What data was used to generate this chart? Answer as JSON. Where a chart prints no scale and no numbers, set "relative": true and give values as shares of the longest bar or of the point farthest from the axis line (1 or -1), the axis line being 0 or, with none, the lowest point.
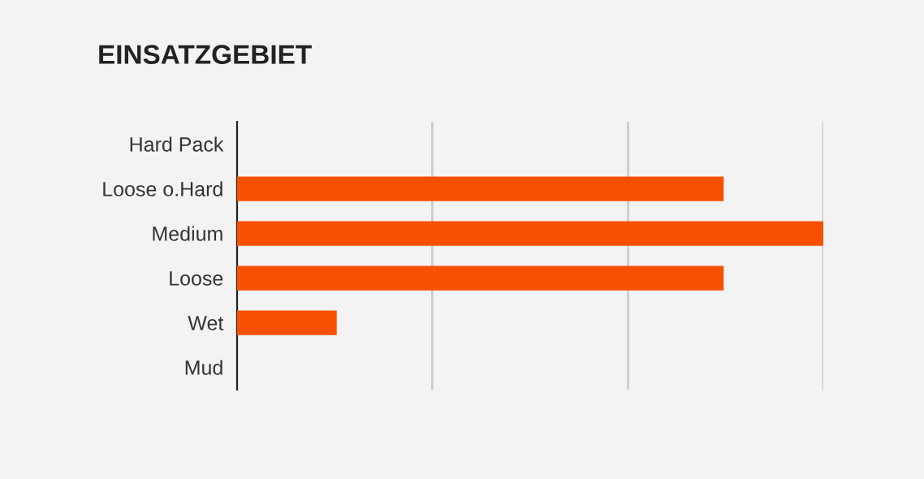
{
  "chart_data": {
    "type": "bar",
    "title": "EINSATZGEBIET",
    "orientation": "horizontal",
    "relative": true,
    "categories": [
      "Hard Pack",
      "Loose o.Hard",
      "Medium",
      "Loose",
      "Wet",
      "Mud"
    ],
    "series": [
      {
        "color": "#f85000",
        "values": [
          0,
          0.83,
          1,
          0.83,
          0.17,
          0
        ]
      }
    ],
    "ref_lines": [
      {
        "axis": "x",
        "value": 0.333,
        "color": "#cccccc"
      },
      {
        "axis": "x",
        "value": 0.667,
        "color": "#cccccc"
      },
      {
        "axis": "x",
        "value": 1,
        "color": "#cccccc"
      }
    ],
    "legend": false
  }
}
